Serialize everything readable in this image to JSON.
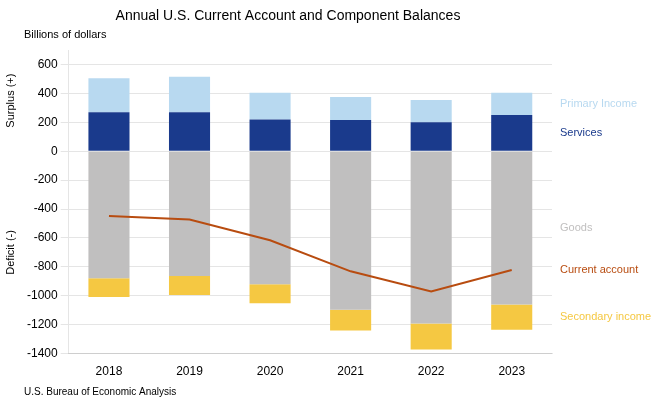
{
  "chart_data": {
    "type": "bar",
    "title": "Annual U.S. Current Account and Component Balances",
    "subtitle": "Billions of dollars",
    "annotations": [
      "Surplus (+)",
      "Deficit (-)",
      "U.S. Bureau of Economic Analysis"
    ],
    "categories": [
      "2018",
      "2019",
      "2020",
      "2021",
      "2022",
      "2023"
    ],
    "stacked": true,
    "series": [
      {
        "name": "Goods",
        "color": "#c0bfbf",
        "values": [
          -878,
          -864,
          -921,
          -1096,
          -1191,
          -1060
        ]
      },
      {
        "name": "Secondary income",
        "color": "#f5c842",
        "values": [
          -130,
          -130,
          -130,
          -145,
          -180,
          -175
        ]
      },
      {
        "name": "Services",
        "color": "#1a3a8c",
        "values": [
          270,
          270,
          220,
          215,
          200,
          250
        ]
      },
      {
        "name": "Primary Income",
        "color": "#b8d9f0",
        "values": [
          235,
          245,
          185,
          160,
          155,
          155
        ]
      },
      {
        "name": "Current account",
        "type": "line",
        "color": "#b84c10",
        "values": [
          -449,
          -472,
          -616,
          -831,
          -971,
          -822
        ]
      }
    ],
    "ylim": [
      -1400,
      700
    ],
    "yticks": [
      -1400,
      -1200,
      -1000,
      -800,
      -600,
      -400,
      -200,
      0,
      200,
      400,
      600
    ],
    "grid": true
  }
}
